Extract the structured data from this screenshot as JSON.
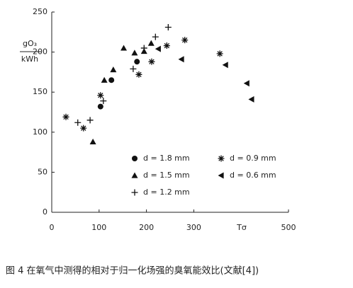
{
  "chart_data": {
    "type": "scatter",
    "y_label_top": "gO₃",
    "y_label_bottom": "kWh",
    "x_label": "Tσ",
    "caption": "图 4  在氧气中测得的相对于归一化场强的臭氧能效比(文献[4])",
    "xlim": [
      0,
      500
    ],
    "xticks": [
      0,
      100,
      200,
      300,
      500
    ],
    "ylim": [
      0,
      250
    ],
    "yticks": [
      0,
      50,
      100,
      150,
      200,
      250
    ],
    "series": [
      {
        "name": "d = 1.8 mm",
        "marker": "circle",
        "color": "#111",
        "x": [
          103,
          126,
          180
        ],
        "values": [
          132,
          165,
          188
        ]
      },
      {
        "name": "d = 0.9 mm",
        "marker": "asterisk",
        "color": "#111",
        "x": [
          30,
          67,
          103,
          184,
          211,
          243,
          281,
          355
        ],
        "values": [
          119,
          105,
          146,
          172,
          188,
          208,
          215,
          198
        ]
      },
      {
        "name": "d = 1.5 mm",
        "marker": "triangle",
        "color": "#111",
        "x": [
          87,
          111,
          130,
          152,
          175,
          195,
          210
        ],
        "values": [
          88,
          165,
          178,
          205,
          199,
          201,
          211
        ]
      },
      {
        "name": "d = 0.6 mm",
        "marker": "left-triangle",
        "color": "#111",
        "x": [
          225,
          274,
          367,
          412,
          422
        ],
        "values": [
          204,
          191,
          184,
          161,
          141
        ]
      },
      {
        "name": "d = 1.2 mm",
        "marker": "plus",
        "color": "#111",
        "x": [
          55,
          81,
          109,
          172,
          195,
          219,
          246
        ],
        "values": [
          112,
          115,
          139,
          179,
          205,
          219,
          231
        ]
      }
    ]
  }
}
